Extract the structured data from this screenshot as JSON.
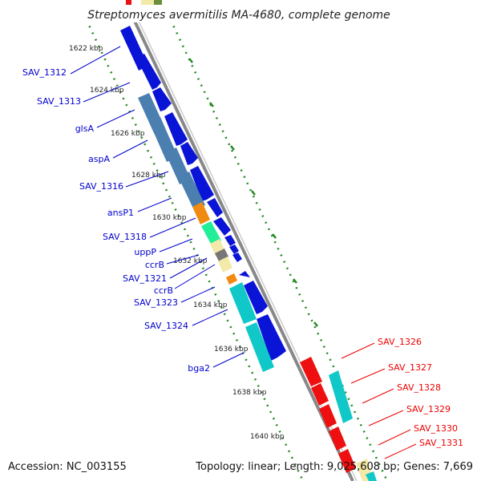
{
  "title": "Streptomyces avermitilis MA-4680, complete genome",
  "footer": {
    "accession": "Accession: NC_003155",
    "summary": "Topology: linear; Length: 9,025,608 bp; Genes: 7,669"
  },
  "colors": {
    "left_label": "#0000cc",
    "right_label": "#ee0000",
    "backbone": "#888888",
    "tick": "#228822"
  },
  "kbp_marks": [
    "1622 kbp",
    "1624 kbp",
    "1626 kbp",
    "1628 kbp",
    "1630 kbp",
    "1632 kbp",
    "1634 kbp",
    "1636 kbp",
    "1638 kbp",
    "1640 kbp"
  ],
  "left_genes": [
    "SAV_1312",
    "SAV_1313",
    "glsA",
    "aspA",
    "SAV_1316",
    "ansP1",
    "SAV_1318",
    "uppP",
    "ccrB",
    "SAV_1321",
    "ccrB",
    "SAV_1323",
    "SAV_1324",
    "bga2"
  ],
  "right_genes": [
    "SAV_1326",
    "SAV_1327",
    "SAV_1328",
    "SAV_1329",
    "SAV_1330",
    "SAV_1331"
  ]
}
